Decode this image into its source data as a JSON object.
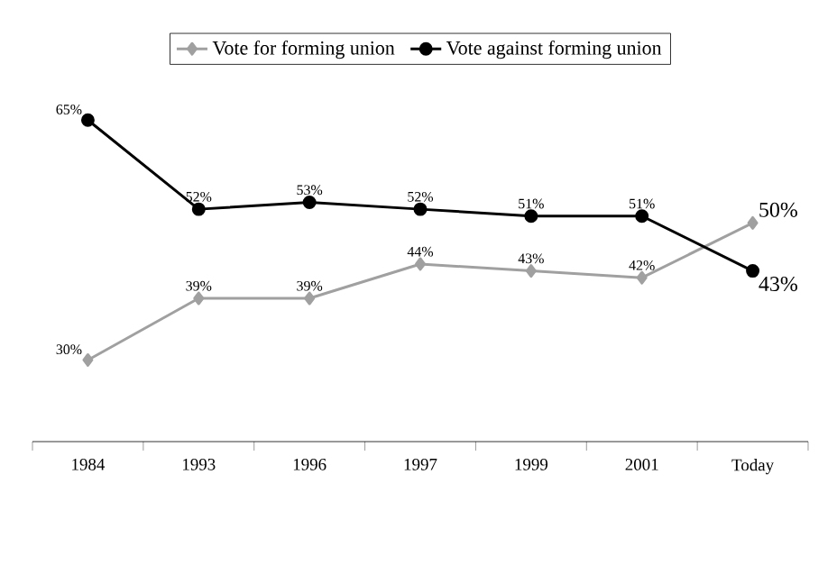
{
  "chart_data": {
    "type": "line",
    "categories": [
      "1984",
      "1993",
      "1996",
      "1997",
      "1999",
      "2001",
      "Today"
    ],
    "series": [
      {
        "name": "Vote for forming union",
        "color": "#a0a0a0",
        "marker": "diamond",
        "values": [
          30,
          39,
          39,
          44,
          43,
          42,
          50
        ],
        "value_labels": [
          "30%",
          "39%",
          "39%",
          "44%",
          "43%",
          "42%",
          "50%"
        ]
      },
      {
        "name": "Vote against forming union",
        "color": "#000000",
        "marker": "circle",
        "values": [
          65,
          52,
          53,
          52,
          51,
          51,
          43
        ],
        "value_labels": [
          "65%",
          "52%",
          "53%",
          "52%",
          "51%",
          "51%",
          "43%"
        ]
      }
    ],
    "grid": false,
    "legend": "top",
    "line_style": "solid"
  }
}
